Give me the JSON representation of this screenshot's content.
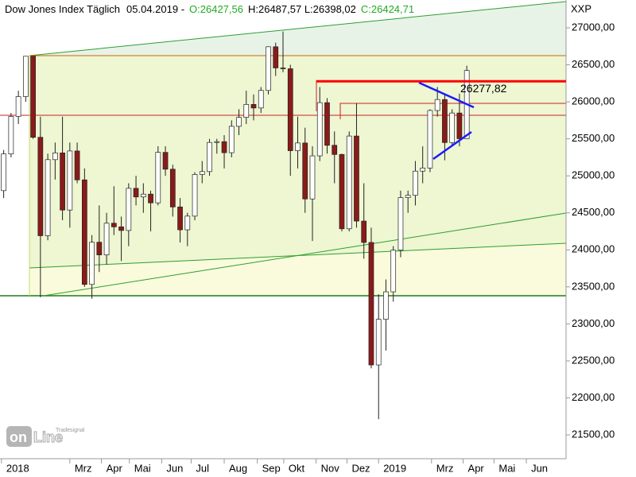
{
  "chart_data": {
    "type": "candlestick",
    "title": "Dow Jones Index Täglich",
    "date": "05.04.2019 -",
    "ohlc": [
      {
        "label": "O:26427,56",
        "color": "#22aa22"
      },
      {
        "label": "H:26487,57 L:26398,02",
        "color": "#000000"
      },
      {
        "label": "C:26424,71",
        "color": "#22aa22"
      }
    ],
    "symbol": "XXP",
    "logo": {
      "brand": "Tradesignal",
      "on": "on",
      "line": "Line"
    },
    "annotation": {
      "value": 26277.82,
      "label": "26277,82",
      "color": "#ff0000"
    },
    "up_color": "#ffffff",
    "down_color": "#8b1a1a",
    "open": [
      24800,
      25296,
      25803,
      26071,
      26616,
      25521,
      24191,
      25219,
      25310,
      24538,
      25336,
      24946,
      23533,
      24103,
      23932,
      24360,
      24311,
      24262,
      24831,
      24715,
      24753,
      24635,
      25317,
      25090,
      24580,
      24271,
      24456,
      25019,
      25058,
      25451,
      25462,
      25313,
      25669,
      25790,
      25965,
      25917,
      26154,
      26744,
      26458,
      26447,
      25340,
      25444,
      24688,
      25270,
      25989,
      25413,
      25289,
      24285,
      25538,
      24389,
      24100,
      22445,
      23062,
      23433,
      23996,
      24706,
      24737,
      25064,
      25106,
      25883,
      26031,
      25450,
      25849,
      25502
    ],
    "high": [
      25350,
      25850,
      26150,
      26617,
      26608,
      25800,
      25300,
      25450,
      25800,
      25450,
      25450,
      25100,
      24200,
      24600,
      24500,
      24860,
      24450,
      24900,
      25000,
      24900,
      24800,
      25400,
      25400,
      25150,
      24700,
      24500,
      25050,
      25200,
      25500,
      25500,
      25550,
      25750,
      25900,
      26150,
      26100,
      26200,
      26750,
      26800,
      26951,
      26500,
      25800,
      25650,
      25400,
      26200,
      26050,
      25600,
      25300,
      25600,
      25980,
      24900,
      24300,
      23400,
      23600,
      24050,
      24800,
      24800,
      25200,
      25400,
      25900,
      26200,
      26100,
      25900,
      26110,
      26488
    ],
    "low": [
      24700,
      25250,
      25700,
      26000,
      25500,
      23360,
      24130,
      24950,
      24400,
      24300,
      24900,
      23500,
      23340,
      23700,
      23800,
      24200,
      23850,
      24050,
      24600,
      24500,
      24250,
      24600,
      25000,
      24450,
      24100,
      24050,
      24400,
      24900,
      25000,
      25300,
      25100,
      25250,
      25550,
      25700,
      25750,
      25850,
      26100,
      26350,
      26400,
      25000,
      25100,
      24500,
      24120,
      25200,
      25300,
      24900,
      24250,
      24250,
      24300,
      23880,
      22400,
      21712,
      22640,
      23300,
      23900,
      24500,
      24600,
      24900,
      25050,
      25800,
      25210,
      25400,
      25400,
      25500
    ],
    "close": [
      25296,
      25803,
      26071,
      26616,
      25521,
      24191,
      25219,
      25310,
      24538,
      25336,
      24946,
      23533,
      24103,
      23932,
      24360,
      24311,
      24262,
      24831,
      24715,
      24753,
      24635,
      25317,
      25090,
      24580,
      24271,
      24456,
      25019,
      25058,
      25451,
      25462,
      25313,
      25669,
      25790,
      25965,
      25917,
      26154,
      26744,
      26458,
      26447,
      25340,
      25444,
      24688,
      25270,
      25989,
      25413,
      25289,
      24285,
      25538,
      24389,
      24100,
      22445,
      23062,
      23433,
      23996,
      24706,
      24737,
      25064,
      25106,
      25883,
      26031,
      25450,
      25849,
      25502,
      26424
    ],
    "xlim": [
      0,
      77
    ],
    "xticks": [
      {
        "value": 0.2,
        "label": "2018"
      },
      {
        "value": 9.5,
        "label": "Mrz"
      },
      {
        "value": 13.8,
        "label": "Apr"
      },
      {
        "value": 17.6,
        "label": "Mai"
      },
      {
        "value": 22,
        "label": "Jun"
      },
      {
        "value": 26,
        "label": "Jul"
      },
      {
        "value": 30.5,
        "label": "Aug"
      },
      {
        "value": 35,
        "label": "Sep"
      },
      {
        "value": 38.6,
        "label": "Okt"
      },
      {
        "value": 43,
        "label": "Nov"
      },
      {
        "value": 47.2,
        "label": "Dez"
      },
      {
        "value": 51.5,
        "label": "2019"
      },
      {
        "value": 58.7,
        "label": "Mrz"
      },
      {
        "value": 63,
        "label": "Apr"
      },
      {
        "value": 67.2,
        "label": "Mai"
      },
      {
        "value": 71.6,
        "label": "Jun"
      }
    ],
    "ylim": [
      21178,
      27376
    ],
    "yticks": [
      {
        "value": 21500,
        "label": "21500,00"
      },
      {
        "value": 22000,
        "label": "22000,00"
      },
      {
        "value": 22500,
        "label": "22500,00"
      },
      {
        "value": 23000,
        "label": "23000,00"
      },
      {
        "value": 23500,
        "label": "23500,00"
      },
      {
        "value": 24000,
        "label": "24000,00"
      },
      {
        "value": 24500,
        "label": "24500,00"
      },
      {
        "value": 25000,
        "label": "25000,00"
      },
      {
        "value": 25500,
        "label": "25500,00"
      },
      {
        "value": 26000,
        "label": "26000,00"
      },
      {
        "value": 26500,
        "label": "26500,00"
      },
      {
        "value": 27000,
        "label": "27000,00"
      }
    ]
  }
}
